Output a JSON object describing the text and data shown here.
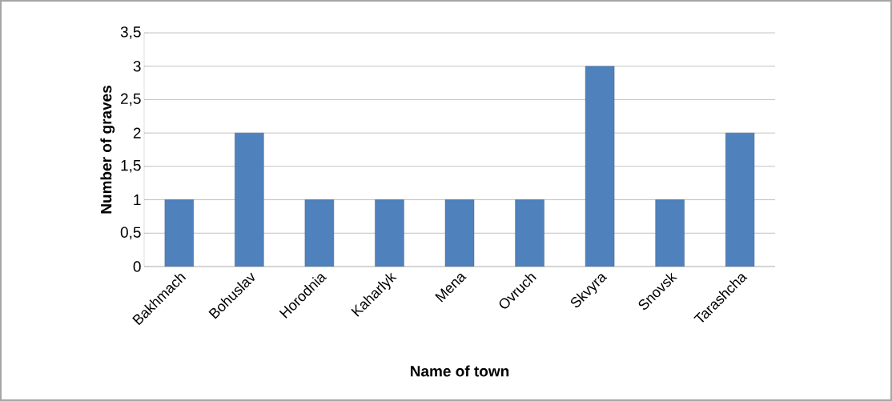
{
  "chart_data": {
    "type": "bar",
    "xlabel": "Name of town",
    "ylabel": "Number of graves",
    "categories": [
      "Bakhmach",
      "Bohuslav",
      "Horodnia",
      "Kaharlyk",
      "Mena",
      "Ovruch",
      "Skvyra",
      "Snovsk",
      "Tarashcha"
    ],
    "values": [
      1,
      2,
      1,
      1,
      1,
      1,
      3,
      1,
      2
    ],
    "color": "#4f81bd",
    "ylim": [
      0,
      3.5
    ],
    "yticks": [
      0,
      {
        "value": 0.5,
        "label": "0,5"
      },
      1,
      {
        "value": 1.5,
        "label": "1,5"
      },
      2,
      {
        "value": 2.5,
        "label": "2,5"
      },
      3,
      {
        "value": 3.5,
        "label": "3,5"
      }
    ],
    "grid": "y"
  }
}
